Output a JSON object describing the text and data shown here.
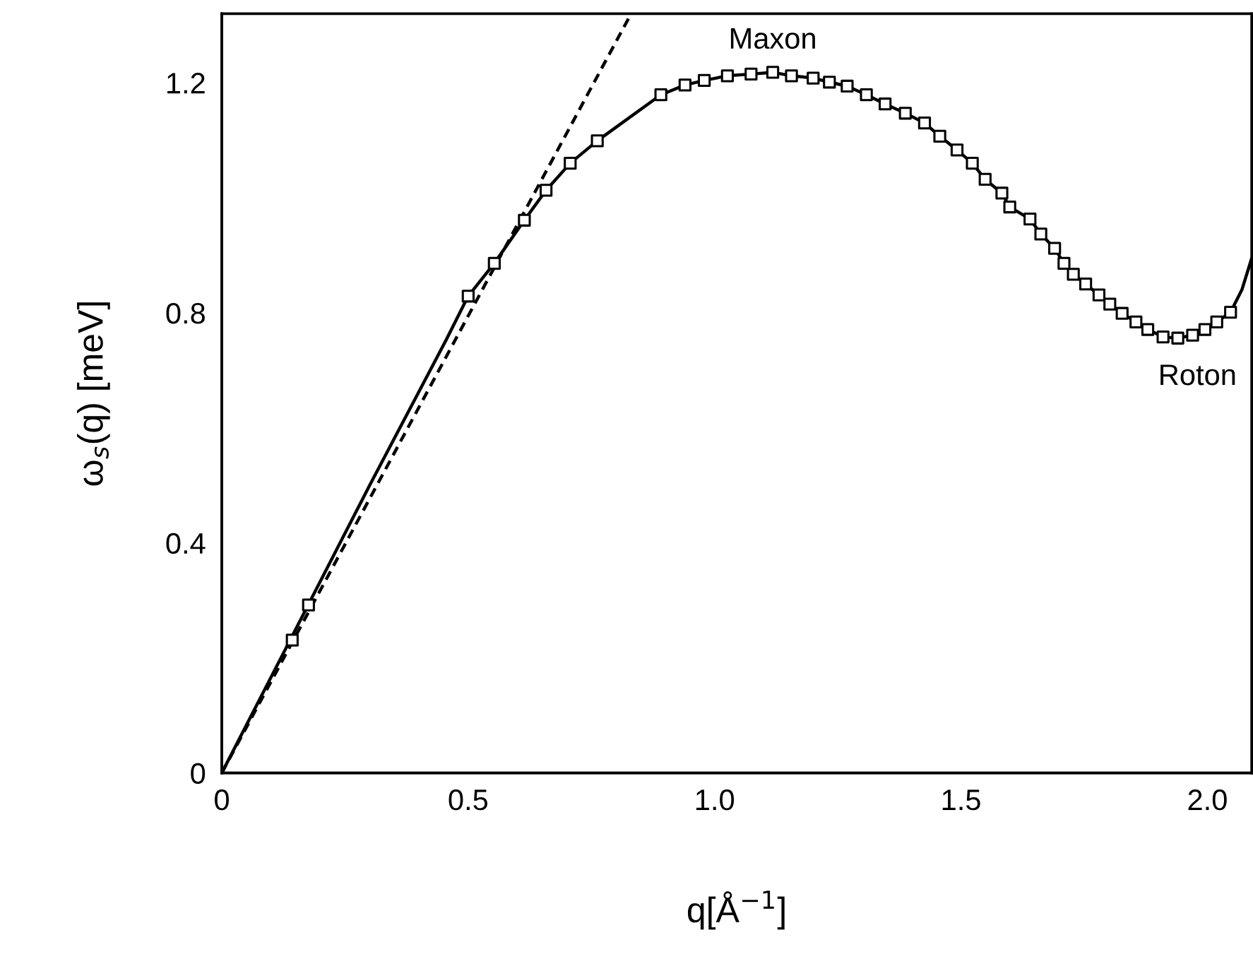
{
  "chart_data": {
    "type": "line",
    "xlabel": "q[Å$^{−1}$]",
    "ylabel": "ω$_{s}$(q) [meV]",
    "xlim": [
      0,
      2.09
    ],
    "ylim": [
      0,
      1.32
    ],
    "xticks": [
      0,
      0.5,
      {
        "value": 1.0,
        "label": "1.0"
      },
      1.5,
      {
        "value": 2.0,
        "label": "2.0"
      }
    ],
    "yticks": [
      0,
      0.4,
      0.8,
      1.2
    ],
    "grid": false,
    "legend": false,
    "series": [
      {
        "type": "line",
        "color": "#000000",
        "line_style": "solid",
        "marker": "none",
        "x": [
          0,
          0.15,
          0.3,
          0.456,
          0.5,
          0.553,
          0.614,
          0.658,
          0.707,
          0.762,
          0.891,
          0.94,
          0.979,
          1.026,
          1.074,
          1.118,
          1.156,
          1.2,
          1.233,
          1.269,
          1.308,
          1.346,
          1.387,
          1.426,
          1.457,
          1.492,
          1.523,
          1.549,
          1.583,
          1.599,
          1.64,
          1.662,
          1.69,
          1.709,
          1.728,
          1.753,
          1.78,
          1.802,
          1.827,
          1.855,
          1.879,
          1.91,
          1.94,
          1.97,
          1.995,
          2.019,
          2.047,
          2.07,
          2.09
        ],
        "values": [
          0,
          0.25,
          0.5,
          0.754,
          0.829,
          0.886,
          0.961,
          1.013,
          1.06,
          1.099,
          1.179,
          1.196,
          1.204,
          1.212,
          1.215,
          1.218,
          1.212,
          1.208,
          1.201,
          1.194,
          1.179,
          1.163,
          1.147,
          1.13,
          1.107,
          1.083,
          1.06,
          1.032,
          1.008,
          0.984,
          0.963,
          0.937,
          0.912,
          0.886,
          0.867,
          0.85,
          0.831,
          0.815,
          0.799,
          0.784,
          0.771,
          0.758,
          0.756,
          0.761,
          0.771,
          0.784,
          0.801,
          0.84,
          0.895
        ]
      },
      {
        "type": "line",
        "color": "#000000",
        "line_style": "dashed",
        "marker": "none",
        "x": [
          0,
          0.83
        ],
        "values": [
          0,
          1.319
        ]
      },
      {
        "type": "scatter",
        "color": "#000000",
        "marker": "square",
        "x": [
          0.143,
          0.176,
          0.5,
          0.553,
          0.614,
          0.658,
          0.707,
          0.762,
          0.891,
          0.94,
          0.979,
          1.026,
          1.074,
          1.118,
          1.156,
          1.2,
          1.233,
          1.269,
          1.308,
          1.346,
          1.387,
          1.426,
          1.457,
          1.492,
          1.523,
          1.549,
          1.583,
          1.599,
          1.64,
          1.662,
          1.69,
          1.709,
          1.728,
          1.753,
          1.78,
          1.802,
          1.827,
          1.855,
          1.879,
          1.91,
          1.94,
          1.97,
          1.995,
          2.019,
          2.047
        ],
        "values": [
          0.231,
          0.292,
          0.829,
          0.886,
          0.961,
          1.013,
          1.06,
          1.099,
          1.179,
          1.196,
          1.204,
          1.212,
          1.215,
          1.218,
          1.212,
          1.208,
          1.201,
          1.194,
          1.179,
          1.163,
          1.147,
          1.13,
          1.107,
          1.083,
          1.06,
          1.032,
          1.008,
          0.984,
          0.963,
          0.937,
          0.912,
          0.886,
          0.867,
          0.85,
          0.831,
          0.815,
          0.799,
          0.784,
          0.771,
          0.758,
          0.756,
          0.761,
          0.771,
          0.784,
          0.801
        ]
      }
    ],
    "annotations": [
      {
        "text": "Maxon",
        "x": 1.118,
        "y": 1.218
      },
      {
        "text": "Roton",
        "x": 1.94,
        "y": 0.756
      }
    ]
  }
}
